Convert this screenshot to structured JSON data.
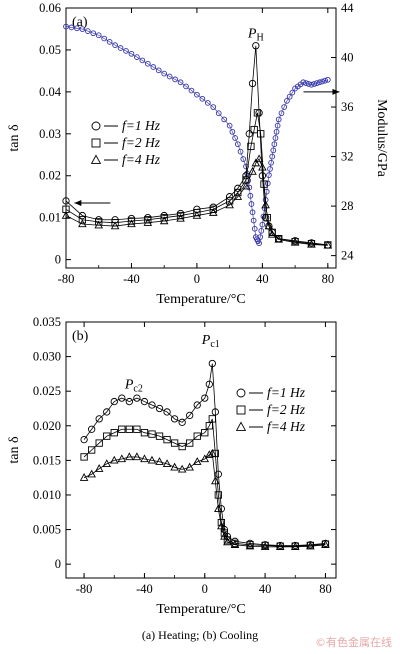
{
  "caption": "(a) Heating; (b) Cooling",
  "watermark": "©有色金属在线",
  "colors": {
    "axis": "#000000",
    "tan_series": "#000000",
    "modulus_series": "#3333aa"
  },
  "chart_data": [
    {
      "type": "scatter",
      "panel_label": "(a)",
      "xlabel": "Temperature/°C",
      "ylabel": "tan δ",
      "y2label": "Modulus/GPa",
      "xlim": [
        -80,
        85
      ],
      "ylim": [
        -0.002,
        0.06
      ],
      "y2lim": [
        23.0,
        44
      ],
      "xticks": [
        "-80",
        "-40",
        "0",
        "40",
        "80"
      ],
      "yticks": [
        "0",
        "0.01",
        "0.02",
        "0.03",
        "0.04",
        "0.05",
        "0.06"
      ],
      "y2ticks": [
        "24",
        "28",
        "32",
        "36",
        "40",
        "44"
      ],
      "legend_position": "left",
      "series": [
        {
          "name": "f=1 Hz",
          "marker": "circle",
          "x": [
            -80,
            -70,
            -60,
            -50,
            -40,
            -30,
            -20,
            -10,
            0,
            10,
            20,
            25,
            30,
            32,
            34,
            36,
            38,
            40,
            42,
            44,
            46,
            50,
            60,
            70,
            80
          ],
          "y": [
            0.014,
            0.0105,
            0.0095,
            0.0095,
            0.0098,
            0.01,
            0.0105,
            0.011,
            0.012,
            0.0125,
            0.015,
            0.017,
            0.02,
            0.03,
            0.042,
            0.051,
            0.035,
            0.02,
            0.01,
            0.008,
            0.0065,
            0.005,
            0.0045,
            0.004,
            0.0035
          ]
        },
        {
          "name": "f=2 Hz",
          "marker": "square",
          "x": [
            -80,
            -70,
            -60,
            -50,
            -40,
            -30,
            -20,
            -10,
            0,
            10,
            20,
            25,
            30,
            33,
            35,
            37,
            39,
            41,
            43,
            46,
            50,
            60,
            70,
            80
          ],
          "y": [
            0.012,
            0.0095,
            0.009,
            0.0088,
            0.0092,
            0.0095,
            0.01,
            0.0105,
            0.0112,
            0.012,
            0.014,
            0.016,
            0.019,
            0.027,
            0.031,
            0.035,
            0.03,
            0.018,
            0.01,
            0.0065,
            0.005,
            0.0043,
            0.0038,
            0.0035
          ]
        },
        {
          "name": "f=4 Hz",
          "marker": "triangle",
          "x": [
            -80,
            -70,
            -60,
            -50,
            -40,
            -30,
            -20,
            -10,
            0,
            10,
            20,
            25,
            30,
            34,
            36,
            38,
            40,
            42,
            44,
            46,
            50,
            60,
            70,
            80
          ],
          "y": [
            0.0105,
            0.0085,
            0.0082,
            0.008,
            0.0085,
            0.0088,
            0.0092,
            0.0098,
            0.0105,
            0.0112,
            0.013,
            0.015,
            0.0175,
            0.021,
            0.023,
            0.024,
            0.022,
            0.013,
            0.008,
            0.006,
            0.0048,
            0.0041,
            0.0036,
            0.0034
          ]
        }
      ],
      "modulus_series": {
        "axis": "right",
        "marker": "circle",
        "x": [
          -80,
          -70,
          -60,
          -50,
          -40,
          -30,
          -20,
          -10,
          0,
          10,
          20,
          25,
          30,
          32,
          34,
          36,
          38,
          40,
          42,
          44,
          46,
          48,
          50,
          55,
          60,
          65,
          70,
          75,
          80
        ],
        "y": [
          42.5,
          42.3,
          41.8,
          41.0,
          40.3,
          39.5,
          38.7,
          38.0,
          37.0,
          36.0,
          34.5,
          33.0,
          31.2,
          29.5,
          27.5,
          25.5,
          25.0,
          26.5,
          28.5,
          30.5,
          32.0,
          33.5,
          35.0,
          36.5,
          37.5,
          38.0,
          37.8,
          38.0,
          38.2
        ]
      },
      "annotations": [
        {
          "text": "P",
          "sub": "H",
          "x": 36,
          "y": 0.053
        },
        {
          "kind": "arrow",
          "direction": "left",
          "x": -70,
          "y": 0.0135
        },
        {
          "kind": "arrow",
          "direction": "right",
          "x": 70,
          "y": 0.04
        }
      ]
    },
    {
      "type": "scatter",
      "panel_label": "(b)",
      "xlabel": "Temperature/°C",
      "ylabel": "tan δ",
      "xlim": [
        -92,
        87
      ],
      "ylim": [
        -0.002,
        0.035
      ],
      "xticks": [
        "-80",
        "-40",
        "0",
        "40",
        "80"
      ],
      "yticks": [
        "0",
        "0.005",
        "0.010",
        "0.015",
        "0.020",
        "0.025",
        "0.030",
        "0.035"
      ],
      "legend_position": "right",
      "series": [
        {
          "name": "f=1 Hz",
          "marker": "circle",
          "x": [
            -80,
            -75,
            -70,
            -65,
            -60,
            -55,
            -50,
            -45,
            -40,
            -35,
            -30,
            -25,
            -20,
            -15,
            -10,
            -5,
            0,
            3,
            5,
            7,
            9,
            11,
            13,
            15,
            20,
            30,
            40,
            50,
            60,
            70,
            80
          ],
          "y": [
            0.018,
            0.0195,
            0.021,
            0.022,
            0.0235,
            0.024,
            0.0235,
            0.024,
            0.0235,
            0.023,
            0.0225,
            0.022,
            0.021,
            0.0205,
            0.0215,
            0.023,
            0.024,
            0.026,
            0.029,
            0.022,
            0.013,
            0.008,
            0.005,
            0.004,
            0.0033,
            0.003,
            0.0028,
            0.0027,
            0.0027,
            0.0028,
            0.003
          ]
        },
        {
          "name": "f=2 Hz",
          "marker": "square",
          "x": [
            -80,
            -75,
            -70,
            -65,
            -60,
            -55,
            -50,
            -45,
            -40,
            -35,
            -30,
            -25,
            -20,
            -15,
            -10,
            -5,
            0,
            3,
            5,
            7,
            9,
            11,
            13,
            15,
            20,
            30,
            40,
            50,
            60,
            70,
            80
          ],
          "y": [
            0.0155,
            0.0165,
            0.0175,
            0.0185,
            0.019,
            0.0195,
            0.0195,
            0.0195,
            0.019,
            0.0188,
            0.0185,
            0.018,
            0.0175,
            0.017,
            0.0175,
            0.0185,
            0.019,
            0.02,
            0.021,
            0.016,
            0.01,
            0.006,
            0.0045,
            0.0035,
            0.003,
            0.0028,
            0.0027,
            0.0026,
            0.0026,
            0.0027,
            0.0029
          ]
        },
        {
          "name": "f=4 Hz",
          "marker": "triangle",
          "x": [
            -80,
            -75,
            -70,
            -65,
            -60,
            -55,
            -50,
            -45,
            -40,
            -35,
            -30,
            -25,
            -20,
            -15,
            -10,
            -5,
            0,
            3,
            5,
            7,
            9,
            11,
            13,
            15,
            20,
            30,
            40,
            50,
            60,
            70,
            80
          ],
          "y": [
            0.0125,
            0.013,
            0.0138,
            0.0145,
            0.015,
            0.0152,
            0.0155,
            0.0155,
            0.0152,
            0.015,
            0.0148,
            0.0145,
            0.014,
            0.0137,
            0.014,
            0.0148,
            0.0152,
            0.0158,
            0.016,
            0.012,
            0.008,
            0.0055,
            0.004,
            0.0032,
            0.0028,
            0.0026,
            0.0025,
            0.0025,
            0.0025,
            0.0026,
            0.0028
          ]
        }
      ],
      "annotations": [
        {
          "text": "P",
          "sub": "c1",
          "x": 4,
          "y": 0.0318
        },
        {
          "text": "P",
          "sub": "c2",
          "x": -47,
          "y": 0.0254
        }
      ]
    }
  ]
}
